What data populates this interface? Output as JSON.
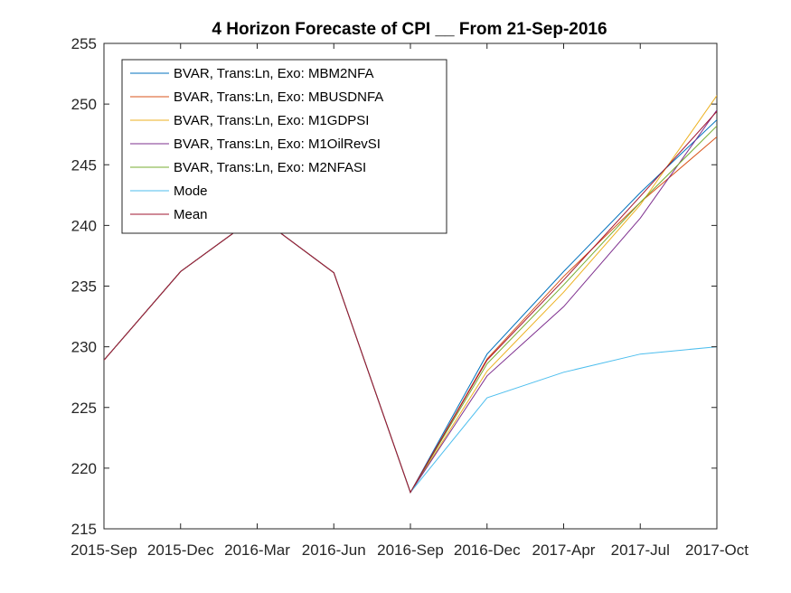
{
  "chart_data": {
    "type": "line",
    "title": "4 Horizon Forecaste of CPI __ From 21-Sep-2016",
    "xlabel": "",
    "ylabel": "",
    "categories": [
      "2015-Sep",
      "2015-Dec",
      "2016-Mar",
      "2016-Jun",
      "2016-Sep",
      "2016-Dec",
      "2017-Apr",
      "2017-Jul",
      "2017-Oct"
    ],
    "ylim": [
      215,
      255
    ],
    "yticks": [
      215,
      220,
      225,
      230,
      235,
      240,
      245,
      250,
      255
    ],
    "legend_location": "top-left inside",
    "grid": false,
    "series": [
      {
        "name": "BVAR, Trans:Ln, Exo: MBM2NFA",
        "color": "#0072BD",
        "values": [
          228.9,
          236.2,
          240.8,
          236.1,
          218.0,
          229.4,
          236.2,
          242.7,
          248.7
        ]
      },
      {
        "name": "BVAR, Trans:Ln, Exo: MBUSDNFA",
        "color": "#D95319",
        "values": [
          228.9,
          236.2,
          240.8,
          236.1,
          218.0,
          229.0,
          235.8,
          241.9,
          247.3
        ]
      },
      {
        "name": "BVAR, Trans:Ln, Exo: M1GDPSI",
        "color": "#EDB120",
        "values": [
          228.9,
          236.2,
          240.8,
          236.1,
          218.0,
          228.0,
          234.5,
          241.7,
          250.7
        ]
      },
      {
        "name": "BVAR, Trans:Ln, Exo: M1OilRevSI",
        "color": "#7E2F8E",
        "values": [
          228.9,
          236.2,
          240.8,
          236.1,
          218.0,
          227.6,
          233.3,
          240.6,
          249.5
        ]
      },
      {
        "name": "BVAR, Trans:Ln, Exo: M2NFASI",
        "color": "#77AC30",
        "values": [
          228.9,
          236.2,
          240.8,
          236.1,
          218.0,
          228.6,
          235.1,
          241.9,
          248.2
        ]
      },
      {
        "name": "Mode",
        "color": "#4DBEEE",
        "values": [
          228.9,
          236.2,
          240.8,
          236.1,
          218.0,
          225.8,
          227.9,
          229.4,
          230.0
        ]
      },
      {
        "name": "Mean",
        "color": "#A2142F",
        "values": [
          228.9,
          236.2,
          240.8,
          236.1,
          218.0,
          228.9,
          235.5,
          242.4,
          249.4
        ]
      }
    ]
  }
}
